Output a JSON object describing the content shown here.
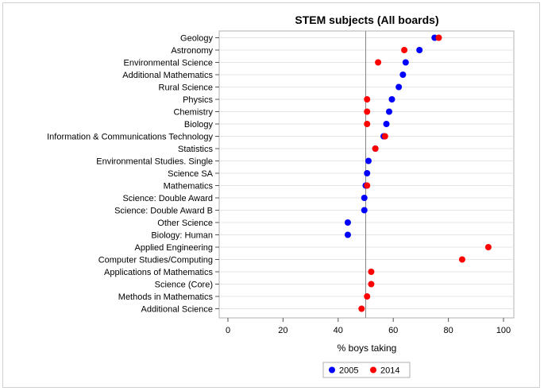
{
  "chart_data": {
    "type": "scatter",
    "title": "STEM subjects (All boards)",
    "xlabel": "% boys taking",
    "ylabel": "",
    "xlim": [
      0,
      100
    ],
    "xticks": [
      0,
      20,
      40,
      60,
      80,
      100
    ],
    "reference_line_x": 50,
    "grid": true,
    "legend_position": "bottom",
    "categories": [
      "Geology",
      "Astronomy",
      "Environmental Science",
      "Additional Mathematics",
      "Rural Science",
      "Physics",
      "Chemistry",
      "Biology",
      "Information & Communications Technology",
      "Statistics",
      "Environmental Studies. Single",
      "Science SA",
      "Mathematics",
      "Science: Double Award",
      "Science: Double Award B",
      "Other Science",
      "Biology: Human",
      "Applied Engineering",
      "Computer Studies/Computing",
      "Applications of Mathematics",
      "Science (Core)",
      "Methods in Mathematics",
      "Additional Science"
    ],
    "series": [
      {
        "name": "2005",
        "color": "#0000ff",
        "values": [
          75,
          69.5,
          64.5,
          63.5,
          62,
          59.5,
          58.5,
          57.5,
          56.5,
          53.5,
          51,
          50.5,
          50,
          49.5,
          49.5,
          43.5,
          43.5,
          null,
          null,
          null,
          null,
          null,
          null
        ]
      },
      {
        "name": "2014",
        "color": "#ff0000",
        "values": [
          76.5,
          64,
          54.5,
          null,
          null,
          50.5,
          50.5,
          50.5,
          57,
          53.5,
          null,
          null,
          50.5,
          null,
          null,
          null,
          null,
          94.5,
          85,
          52,
          52,
          50.5,
          48.5
        ]
      }
    ]
  }
}
